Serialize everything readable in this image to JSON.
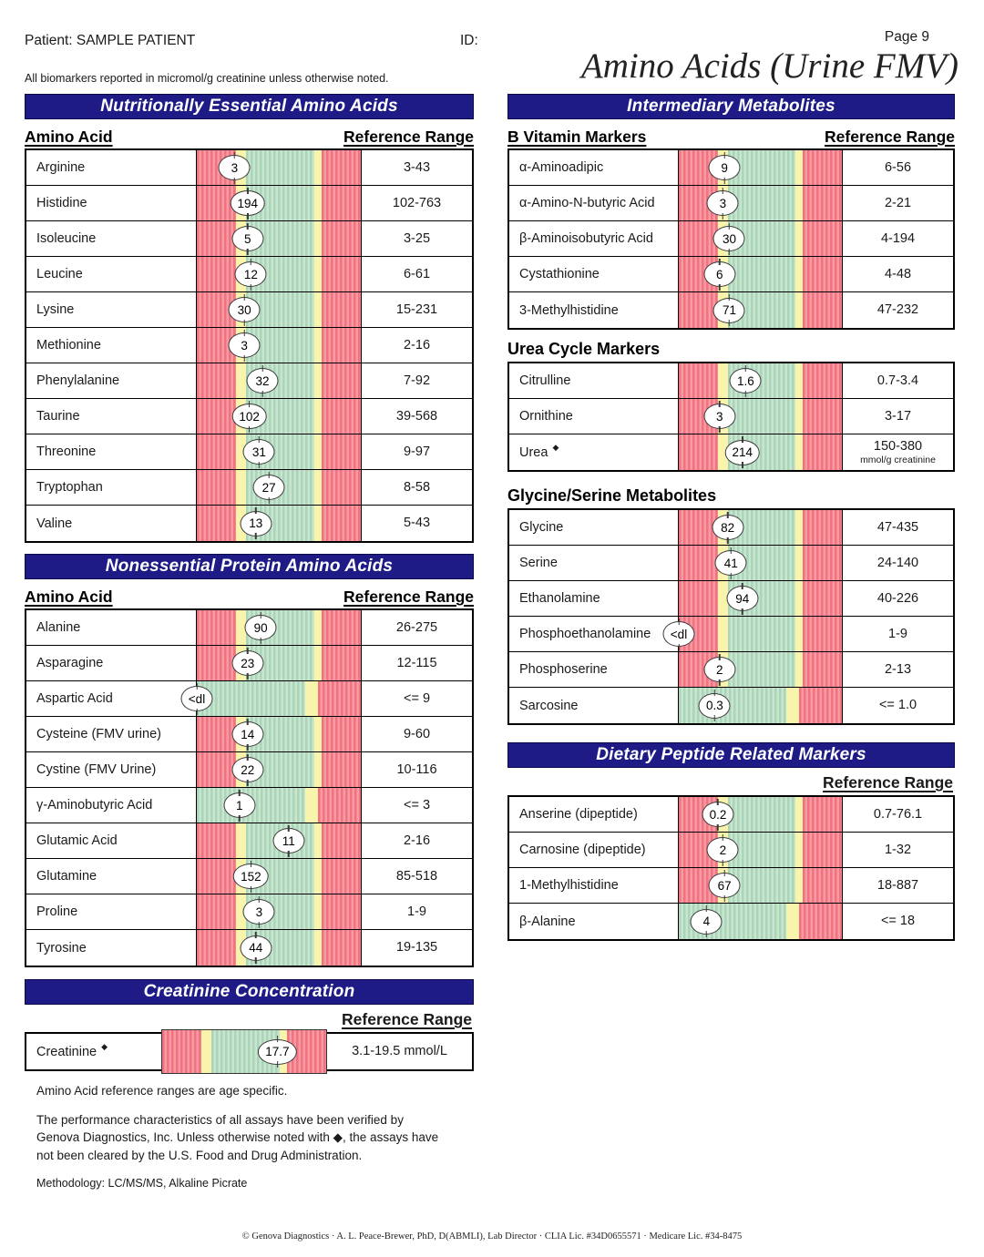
{
  "page": {
    "patient_line": "Patient: SAMPLE PATIENT",
    "id_label": "ID:",
    "page_number": "Page 9",
    "title": "Amino Acids (Urine FMV)",
    "units_note": "All biomarkers reported in micromol/g creatinine unless otherwise noted."
  },
  "colors": {
    "header_bg": "#1e1b87",
    "out_of_range_red": "#f1737f",
    "out_of_range_red_light": "#f79aa3",
    "in_range_green": "#abd5b8",
    "in_range_green_light": "#c7e5cf",
    "limit_yellow": "#f8f4ac"
  },
  "essential": {
    "title": "Nutritionally Essential Amino Acids",
    "col_left": "Amino Acid",
    "col_right": "Reference Range",
    "rows": [
      {
        "name": "Arginine",
        "value": "3",
        "range": "3-43",
        "bar": "standard",
        "pos": 23
      },
      {
        "name": "Histidine",
        "value": "194",
        "range": "102-763",
        "bar": "standard",
        "pos": 31
      },
      {
        "name": "Isoleucine",
        "value": "5",
        "range": "3-25",
        "bar": "standard",
        "pos": 31
      },
      {
        "name": "Leucine",
        "value": "12",
        "range": "6-61",
        "bar": "standard",
        "pos": 33
      },
      {
        "name": "Lysine",
        "value": "30",
        "range": "15-231",
        "bar": "standard",
        "pos": 29
      },
      {
        "name": "Methionine",
        "value": "3",
        "range": "2-16",
        "bar": "standard",
        "pos": 29
      },
      {
        "name": "Phenylalanine",
        "value": "32",
        "range": "7-92",
        "bar": "standard",
        "pos": 40
      },
      {
        "name": "Taurine",
        "value": "102",
        "range": "39-568",
        "bar": "standard",
        "pos": 32
      },
      {
        "name": "Threonine",
        "value": "31",
        "range": "9-97",
        "bar": "standard",
        "pos": 38
      },
      {
        "name": "Tryptophan",
        "value": "27",
        "range": "8-58",
        "bar": "standard",
        "pos": 44
      },
      {
        "name": "Valine",
        "value": "13",
        "range": "5-43",
        "bar": "standard",
        "pos": 36
      }
    ]
  },
  "nonessential": {
    "title": "Nonessential Protein Amino Acids",
    "col_left": "Amino Acid",
    "col_right": "Reference Range",
    "rows": [
      {
        "name": "Alanine",
        "value": "90",
        "range": "26-275",
        "bar": "standard",
        "pos": 39
      },
      {
        "name": "Asparagine",
        "value": "23",
        "range": "12-115",
        "bar": "standard",
        "pos": 31
      },
      {
        "name": "Aspartic Acid",
        "value": "<dl",
        "range": "<= 9",
        "bar": "upper",
        "pos": 0
      },
      {
        "name": "Cysteine (FMV urine)",
        "value": "14",
        "range": "9-60",
        "bar": "standard",
        "pos": 31
      },
      {
        "name": "Cystine (FMV Urine)",
        "value": "22",
        "range": "10-116",
        "bar": "standard",
        "pos": 31
      },
      {
        "name": "γ-Aminobutyric Acid",
        "value": "1",
        "range": "<= 3",
        "bar": "upper",
        "pos": 26
      },
      {
        "name": "Glutamic Acid",
        "value": "11",
        "range": "2-16",
        "bar": "standard",
        "pos": 56
      },
      {
        "name": "Glutamine",
        "value": "152",
        "range": "85-518",
        "bar": "standard",
        "pos": 33
      },
      {
        "name": "Proline",
        "value": "3",
        "range": "1-9",
        "bar": "standard",
        "pos": 38
      },
      {
        "name": "Tyrosine",
        "value": "44",
        "range": "19-135",
        "bar": "standard",
        "pos": 36
      }
    ]
  },
  "creatinine": {
    "title": "Creatinine Concentration",
    "ref_header": "Reference Range",
    "rows": [
      {
        "name": "Creatinine",
        "flag": "◆",
        "value": "17.7",
        "range": "3.1-19.5 mmol/L",
        "bar": "standard",
        "pos": 70
      }
    ]
  },
  "intermediary": {
    "title": "Intermediary Metabolites",
    "b_vitamin": {
      "heading": "B Vitamin Markers",
      "ref_header": "Reference Range",
      "rows": [
        {
          "name": "α-Aminoadipic",
          "value": "9",
          "range": "6-56",
          "bar": "standard",
          "pos": 28
        },
        {
          "name": "α-Amino-N-butyric Acid",
          "value": "3",
          "range": "2-21",
          "bar": "standard",
          "pos": 27
        },
        {
          "name": "β-Aminoisobutyric Acid",
          "value": "30",
          "range": "4-194",
          "bar": "standard",
          "pos": 31
        },
        {
          "name": "Cystathionine",
          "value": "6",
          "range": "4-48",
          "bar": "standard",
          "pos": 25
        },
        {
          "name": "3-Methylhistidine",
          "value": "71",
          "range": "47-232",
          "bar": "standard",
          "pos": 31
        }
      ]
    },
    "urea": {
      "heading": "Urea Cycle Markers",
      "rows": [
        {
          "name": "Citrulline",
          "value": "1.6",
          "range": "0.7-3.4",
          "bar": "standard",
          "pos": 41
        },
        {
          "name": "Ornithine",
          "value": "3",
          "range": "3-17",
          "bar": "standard",
          "pos": 25
        },
        {
          "name": "Urea",
          "flag": "◆",
          "value": "214",
          "range": "150-380",
          "range2": "mmol/g creatinine",
          "bar": "standard",
          "pos": 39
        }
      ]
    },
    "glycine": {
      "heading": "Glycine/Serine Metabolites",
      "rows": [
        {
          "name": "Glycine",
          "value": "82",
          "range": "47-435",
          "bar": "standard",
          "pos": 30
        },
        {
          "name": "Serine",
          "value": "41",
          "range": "24-140",
          "bar": "standard",
          "pos": 32
        },
        {
          "name": "Ethanolamine",
          "value": "94",
          "range": "40-226",
          "bar": "standard",
          "pos": 39
        },
        {
          "name": "Phosphoethanolamine",
          "value": "<dl",
          "range": "1-9",
          "bar": "standard",
          "pos": 0
        },
        {
          "name": "Phosphoserine",
          "value": "2",
          "range": "2-13",
          "bar": "standard",
          "pos": 25
        },
        {
          "name": "Sarcosine",
          "value": "0.3",
          "range": "<= 1.0",
          "bar": "upper",
          "pos": 22
        }
      ]
    }
  },
  "dietary": {
    "title": "Dietary Peptide Related Markers",
    "ref_header": "Reference Range",
    "rows": [
      {
        "name": "Anserine (dipeptide)",
        "value": "0.2",
        "range": "0.7-76.1",
        "bar": "standard",
        "pos": 24
      },
      {
        "name": "Carnosine (dipeptide)",
        "value": "2",
        "range": "1-32",
        "bar": "standard",
        "pos": 27
      },
      {
        "name": "1-Methylhistidine",
        "value": "67",
        "range": "18-887",
        "bar": "standard",
        "pos": 28
      },
      {
        "name": "β-Alanine",
        "value": "4",
        "range": "<= 18",
        "bar": "upper",
        "pos": 17
      }
    ]
  },
  "footnotes": {
    "age": "Amino Acid reference ranges are age specific.",
    "fda": "The performance characteristics of all assays have been verified by Genova Diagnostics, Inc. Unless otherwise noted with ◆, the assays have not been cleared by the U.S. Food and Drug Administration.",
    "methodology": "Methodology: LC/MS/MS, Alkaline Picrate"
  },
  "footer": {
    "text": "© Genova Diagnostics · A. L. Peace-Brewer, PhD, D(ABMLI), Lab Director · CLIA Lic. #34D0655571 · Medicare Lic. #34-8475"
  }
}
